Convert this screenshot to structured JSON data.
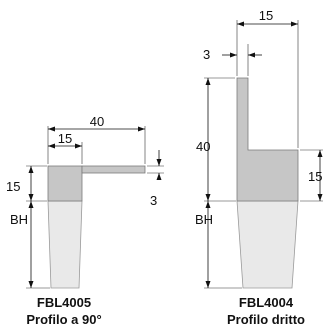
{
  "profiles": [
    {
      "code": "FBL4005",
      "name": "Profilo a 90°",
      "dimensions": {
        "total_width": "40",
        "body_width": "15",
        "body_height": "15",
        "thickness": "3",
        "brush_height": "BH"
      }
    },
    {
      "code": "FBL4004",
      "name": "Profilo dritto",
      "dimensions": {
        "total_width": "15",
        "thickness": "3",
        "total_height": "40",
        "body_height": "15",
        "brush_height": "BH"
      }
    }
  ],
  "colors": {
    "profile_body": "#c6c6c6",
    "brush_fill": "#e9e9e9",
    "lines": "#111111"
  }
}
